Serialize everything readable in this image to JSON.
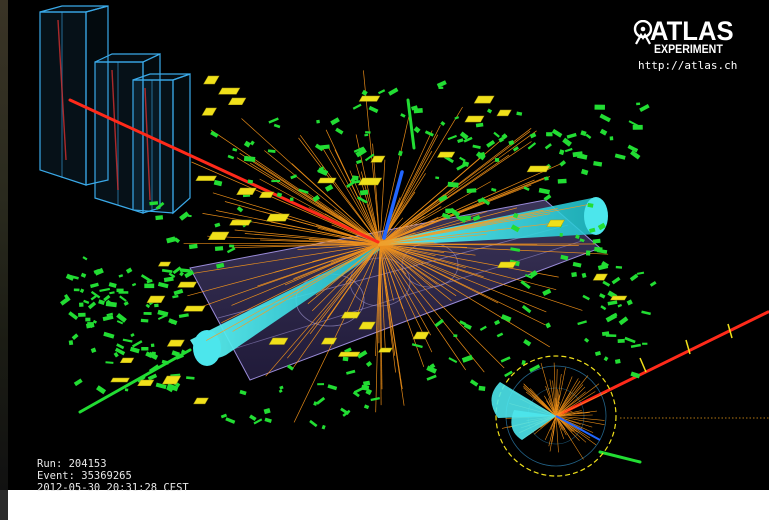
{
  "logo": {
    "title": "ATLAS",
    "subtitle": "EXPERIMENT",
    "url": "http://atlas.ch"
  },
  "run_info": {
    "run": "Run: 204153",
    "event": "Event: 35369265",
    "timestamp": "2012-05-30 20:31:28 CEST"
  },
  "colors": {
    "background": "#000000",
    "muon_track": "#ff2a1a",
    "jet_cone": "#33e0e6",
    "hadron_tracks": "#ff9a1a",
    "electron_track": "#2266ff",
    "calorimeter_hits": "#22dd33",
    "muon_chambers": "#f0e01a",
    "detector_outline": "#3aa9e8",
    "barrel": "#8070b8"
  },
  "icons": {
    "logo_mark": "atlas-figure-icon"
  }
}
